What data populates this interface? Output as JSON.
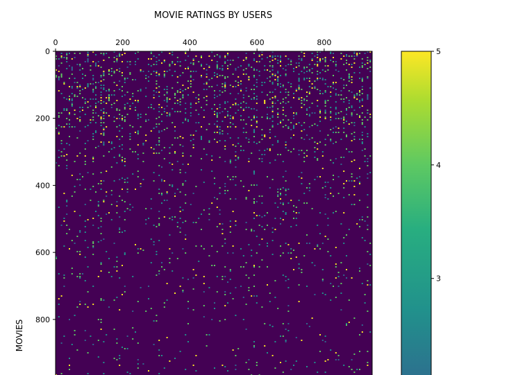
{
  "chart_data": {
    "type": "heatmap",
    "title": "MOVIE RATINGS BY USERS",
    "ylabel": "MOVIES",
    "xlabel": "",
    "x_tick_labels": [
      "0",
      "200",
      "400",
      "600",
      "800"
    ],
    "x_ticks": [
      0,
      200,
      400,
      600,
      800
    ],
    "y_tick_labels": [
      "0",
      "200",
      "400",
      "600",
      "800"
    ],
    "y_ticks": [
      0,
      200,
      400,
      600,
      800
    ],
    "x_axis_position": "top",
    "xlim": [
      0,
      943
    ],
    "ylim_visible": [
      0,
      960
    ],
    "grid": false,
    "colormap": "viridis",
    "colorbar": {
      "position": "right",
      "tick_labels": [
        "5",
        "4",
        "3"
      ],
      "ticks": [
        5,
        4,
        3
      ],
      "range_visible": [
        2.15,
        5
      ]
    },
    "values_note_colors": {
      "background": "#440154",
      "low": "#31688e",
      "mid": "#21918c",
      "high": "#5ec962",
      "max": "#fde725"
    }
  }
}
